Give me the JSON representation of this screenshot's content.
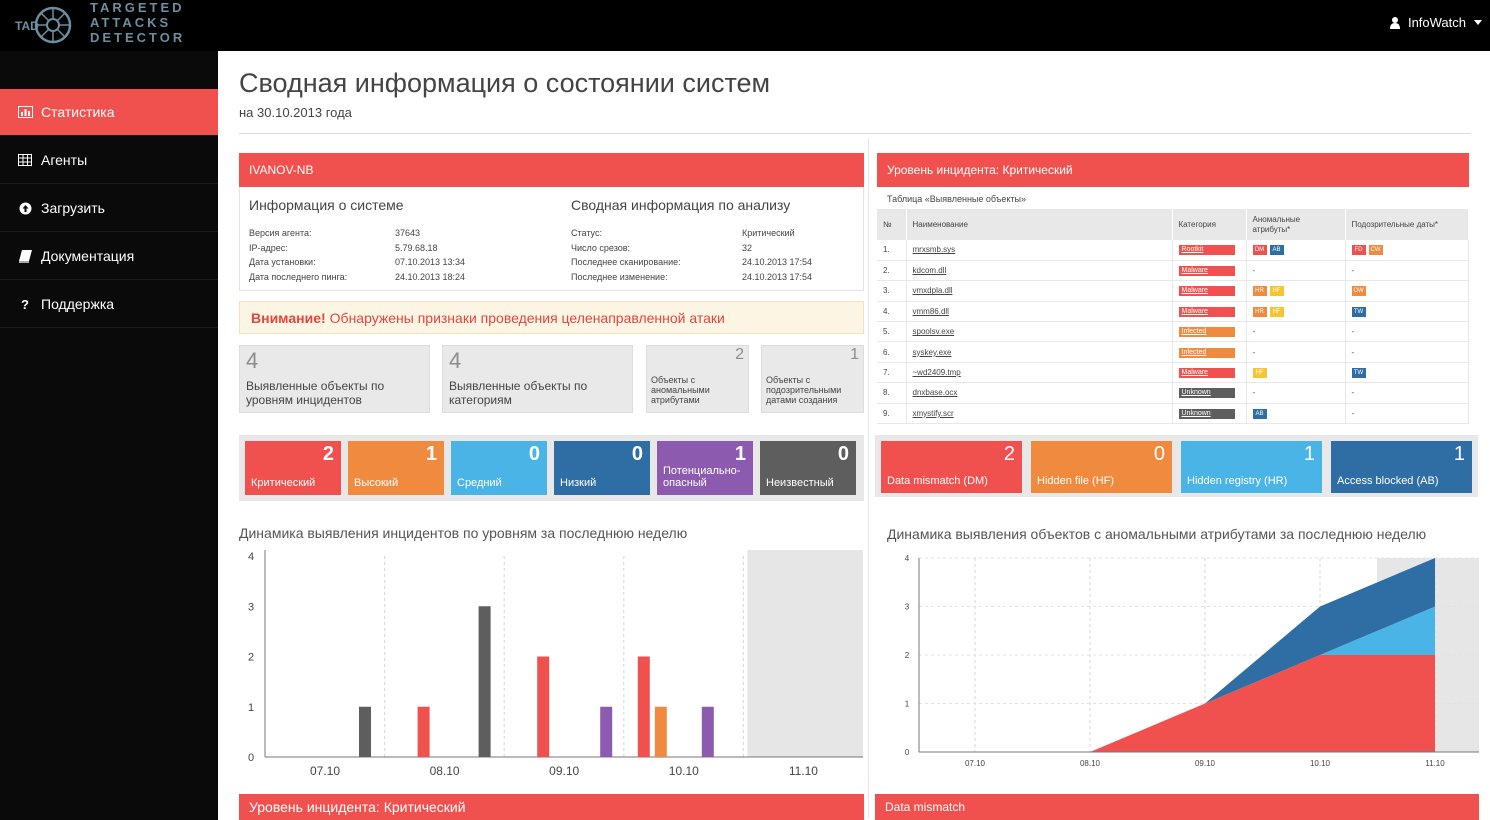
{
  "logo": {
    "abbr": "TAD",
    "lines": [
      "TARGETED",
      "ATTACKS",
      "DETECTOR"
    ]
  },
  "user": {
    "name": "InfoWatch"
  },
  "sidebar": {
    "items": [
      {
        "label": "Статистика",
        "icon": "bar-chart-icon",
        "active": true
      },
      {
        "label": "Агенты",
        "icon": "table-icon",
        "active": false
      },
      {
        "label": "Загрузить",
        "icon": "upload-icon",
        "active": false
      },
      {
        "label": "Документация",
        "icon": "book-icon",
        "active": false
      },
      {
        "label": "Поддержка",
        "icon": "question-icon",
        "active": false
      }
    ]
  },
  "page": {
    "title": "Сводная информация о состоянии систем",
    "subtitle": "на 30.10.2013 года"
  },
  "host": {
    "name": "IVANOV-NB",
    "system_title": "Информация о системе",
    "analysis_title": "Сводная информация по анализу",
    "system": [
      {
        "k": "Версия агента:",
        "v": "37643"
      },
      {
        "k": "IP-адрес:",
        "v": "5.79.68.18"
      },
      {
        "k": "Дата установки:",
        "v": "07.10.2013 13:34"
      },
      {
        "k": "Дата последнего пинга:",
        "v": "24.10.2013 18:24"
      }
    ],
    "analysis": [
      {
        "k": "Статус:",
        "v": "Критический"
      },
      {
        "k": "Число срезов:",
        "v": "32"
      },
      {
        "k": "Последнее сканирование:",
        "v": "24.10.2013 17:54"
      },
      {
        "k": "Последнее изменение:",
        "v": "24.10.2013 17:54"
      }
    ]
  },
  "alert": {
    "strong": "Внимание!",
    "text": "Обнаружены признаки проведения целенаправленной атаки"
  },
  "stats": [
    {
      "num": "4",
      "label": "Выявленные объекты по уровням инцидентов"
    },
    {
      "num": "4",
      "label": "Выявленные объекты по категориям"
    },
    {
      "num": "2",
      "label": "Объекты с аномальными атрибутами"
    },
    {
      "num": "1",
      "label": "Объекты с подозрительными датами создания"
    }
  ],
  "levels": [
    {
      "label": "Критический",
      "count": "2",
      "color": "#f0514e"
    },
    {
      "label": "Высокий",
      "count": "1",
      "color": "#f08a3e"
    },
    {
      "label": "Средний",
      "count": "0",
      "color": "#4ab4e6"
    },
    {
      "label": "Низкий",
      "count": "0",
      "color": "#2f6ea5"
    },
    {
      "label": "Потенциально-опасный",
      "count": "1",
      "color": "#8c5bb0"
    },
    {
      "label": "Неизвестный",
      "count": "0",
      "color": "#5e5e5e"
    }
  ],
  "incident": {
    "header": "Уровень инцидента: Критический"
  },
  "objects": {
    "caption": "Таблица «Выявленные объекты»",
    "columns": [
      "№",
      "Наименование",
      "Категория",
      "Аномальные атрибуты*",
      "Подозрительные даты*"
    ],
    "rows": [
      {
        "no": "1.",
        "name": "mrxsmb.sys",
        "cat": "Rootkit",
        "catColor": "#f0514e",
        "attrs": [
          {
            "t": "DM",
            "c": "#f0514e"
          },
          {
            "t": "AB",
            "c": "#2f6ea5"
          }
        ],
        "dates": [
          {
            "t": "FD",
            "c": "#f0514e"
          },
          {
            "t": "CW",
            "c": "#f08a3e"
          }
        ]
      },
      {
        "no": "2.",
        "name": "kdcom.dll",
        "cat": "Malware",
        "catColor": "#f0514e",
        "attrs": [],
        "dates": []
      },
      {
        "no": "3.",
        "name": "vmxdpla.dll",
        "cat": "Malware",
        "catColor": "#f0514e",
        "attrs": [
          {
            "t": "HR",
            "c": "#f08a3e"
          },
          {
            "t": "HF",
            "c": "#f7c531"
          }
        ],
        "dates": [
          {
            "t": "OW",
            "c": "#f08a3e"
          }
        ]
      },
      {
        "no": "4.",
        "name": "vmm86.dll",
        "cat": "Malware",
        "catColor": "#f0514e",
        "attrs": [
          {
            "t": "HR",
            "c": "#f08a3e"
          },
          {
            "t": "HF",
            "c": "#f7c531"
          }
        ],
        "dates": [
          {
            "t": "TW",
            "c": "#2f6ea5"
          }
        ]
      },
      {
        "no": "5.",
        "name": "spoolsv.exe",
        "cat": "Infected",
        "catColor": "#f08a3e",
        "attrs": [],
        "dates": []
      },
      {
        "no": "6.",
        "name": "syskey.exe",
        "cat": "Infected",
        "catColor": "#f08a3e",
        "attrs": [],
        "dates": []
      },
      {
        "no": "7.",
        "name": "~wd2409.tmp",
        "cat": "Malware",
        "catColor": "#f0514e",
        "attrs": [
          {
            "t": "HF",
            "c": "#f7c531"
          }
        ],
        "dates": [
          {
            "t": "TW",
            "c": "#2f6ea5"
          }
        ]
      },
      {
        "no": "8.",
        "name": "dnxbase.ocx",
        "cat": "Unknown",
        "catColor": "#5e5e5e",
        "attrs": [],
        "dates": []
      },
      {
        "no": "9.",
        "name": "xmystify.scr",
        "cat": "Unknown",
        "catColor": "#5e5e5e",
        "attrs": [
          {
            "t": "AB",
            "c": "#2f6ea5"
          }
        ],
        "dates": []
      }
    ],
    "dash": "-"
  },
  "anomalies": [
    {
      "label": "Data mismatch (DM)",
      "count": "2",
      "color": "#f0514e"
    },
    {
      "label": "Hidden file (HF)",
      "count": "0",
      "color": "#f08a3e"
    },
    {
      "label": "Hidden registry (HR)",
      "count": "1",
      "color": "#4ab4e6"
    },
    {
      "label": "Access blocked (AB)",
      "count": "1",
      "color": "#2f6ea5"
    }
  ],
  "chart_left_title": "Динамика выявления инцидентов по уровням за последнюю неделю",
  "chart_right_title": "Динамика выявления объектов с аномальными атрибутами за последнюю неделю",
  "bottom": {
    "left": "Уровень инцидента: Критический",
    "right": "Data mismatch"
  },
  "chart_data": [
    {
      "type": "bar",
      "categories": [
        "07.10",
        "08.10",
        "09.10",
        "10.10",
        "11.10"
      ],
      "ylim": [
        0,
        4
      ],
      "yticks": [
        0,
        1,
        2,
        3,
        4
      ],
      "grid": true,
      "highlight_last": true,
      "bars": [
        {
          "cat": 0,
          "series": "Неизвестный",
          "value": 1,
          "color": "#5e5e5e"
        },
        {
          "cat": 1,
          "series": "Неизвестный",
          "value": 3,
          "color": "#5e5e5e"
        },
        {
          "cat": 1,
          "series": "Критический",
          "value": 1,
          "color": "#f0514e"
        },
        {
          "cat": 2,
          "series": "Критический",
          "value": 2,
          "color": "#f0514e"
        },
        {
          "cat": 2,
          "series": "Потенциально-опасный",
          "value": 1,
          "color": "#8c5bb0"
        },
        {
          "cat": 3,
          "series": "Критический",
          "value": 2,
          "color": "#f0514e"
        },
        {
          "cat": 3,
          "series": "Высокий",
          "value": 1,
          "color": "#f08a3e"
        },
        {
          "cat": 3,
          "series": "Потенциально-опасный",
          "value": 1,
          "color": "#8c5bb0"
        }
      ]
    },
    {
      "type": "area",
      "categories": [
        "07.10",
        "08.10",
        "09.10",
        "10.10",
        "11.10"
      ],
      "ylim": [
        0,
        4
      ],
      "yticks": [
        0,
        1,
        2,
        3,
        4
      ],
      "grid": true,
      "stacked": true,
      "series": [
        {
          "name": "Data mismatch (DM)",
          "color": "#f0514e",
          "values": [
            0,
            0,
            1,
            2,
            2
          ]
        },
        {
          "name": "Hidden registry (HR)",
          "color": "#4ab4e6",
          "values": [
            0,
            0,
            0,
            0,
            1
          ]
        },
        {
          "name": "Access blocked (AB)",
          "color": "#2f6ea5",
          "values": [
            0,
            0,
            0,
            1,
            1
          ]
        }
      ]
    }
  ]
}
